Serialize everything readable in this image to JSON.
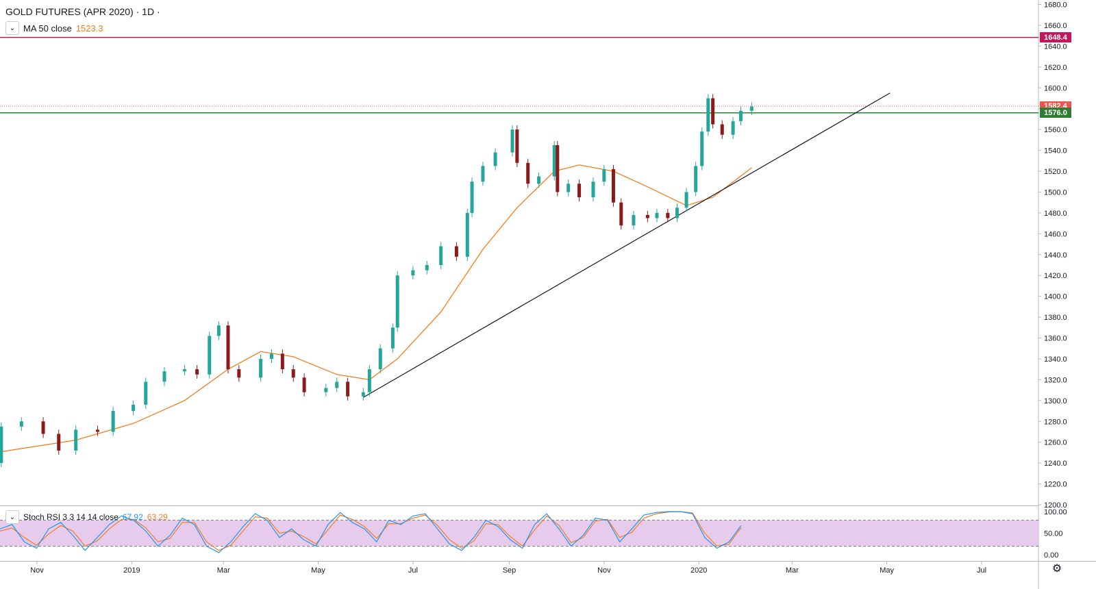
{
  "header": {
    "title": "GOLD FUTURES (APR 2020) · 1D ·",
    "ma_label": "MA 50 close",
    "ma_value": "1523.3"
  },
  "stoch": {
    "label": "Stoch RSI 3 3 14 14 close",
    "k_value": "67.92",
    "d_value": "63.29",
    "ticks": [
      "100.00",
      "50.00",
      "0.00"
    ],
    "band_upper": 80,
    "band_lower": 20
  },
  "lines": {
    "resistance_label": "1648.4",
    "last_price_label": "1582.4",
    "support_label": "1576.0",
    "resistance_color": "#c2185b",
    "last_price_color": "#ef5350",
    "support_color": "#2e7d32"
  },
  "colors": {
    "up": "#26a69a",
    "down": "#8b1a1a",
    "ma": "#f57c1f",
    "stoch_k": "#2196f3",
    "stoch_d": "#f57c1f",
    "band": "#e1bee7",
    "trendline": "#131722"
  },
  "chart_data": {
    "type": "candlestick",
    "title": "GOLD FUTURES (APR 2020) · 1D ·",
    "y_range": [
      1200,
      1680
    ],
    "y_ticks": [
      "1680.0",
      "1660.0",
      "1640.0",
      "1620.0",
      "1600.0",
      "1580.0",
      "1560.0",
      "1540.0",
      "1520.0",
      "1500.0",
      "1480.0",
      "1460.0",
      "1440.0",
      "1420.0",
      "1400.0",
      "1380.0",
      "1360.0",
      "1340.0",
      "1320.0",
      "1300.0",
      "1280.0",
      "1260.0",
      "1240.0",
      "1220.0",
      "1200.0"
    ],
    "x_ticks": [
      {
        "label": "Nov",
        "date": "2018-11-01"
      },
      {
        "label": "2019",
        "date": "2019-01-01"
      },
      {
        "label": "Mar",
        "date": "2019-03-01"
      },
      {
        "label": "May",
        "date": "2019-05-01"
      },
      {
        "label": "Jul",
        "date": "2019-07-01"
      },
      {
        "label": "Sep",
        "date": "2019-09-01"
      },
      {
        "label": "Nov",
        "date": "2019-11-01"
      },
      {
        "label": "2020",
        "date": "2020-01-01"
      },
      {
        "label": "Mar",
        "date": "2020-03-01"
      },
      {
        "label": "May",
        "date": "2020-05-01"
      },
      {
        "label": "Jul",
        "date": "2020-07-01"
      }
    ],
    "close_series": [
      {
        "date": "2018-10-05",
        "close": 1240
      },
      {
        "date": "2018-10-09",
        "close": 1275
      },
      {
        "date": "2018-10-22",
        "close": 1280
      },
      {
        "date": "2018-11-05",
        "close": 1268
      },
      {
        "date": "2018-11-15",
        "close": 1252
      },
      {
        "date": "2018-11-26",
        "close": 1272
      },
      {
        "date": "2018-12-10",
        "close": 1270
      },
      {
        "date": "2018-12-20",
        "close": 1290
      },
      {
        "date": "2019-01-02",
        "close": 1296
      },
      {
        "date": "2019-01-10",
        "close": 1318
      },
      {
        "date": "2019-01-22",
        "close": 1328
      },
      {
        "date": "2019-02-04",
        "close": 1330
      },
      {
        "date": "2019-02-12",
        "close": 1325
      },
      {
        "date": "2019-02-20",
        "close": 1362
      },
      {
        "date": "2019-02-26",
        "close": 1372
      },
      {
        "date": "2019-03-04",
        "close": 1330
      },
      {
        "date": "2019-03-11",
        "close": 1322
      },
      {
        "date": "2019-03-25",
        "close": 1340
      },
      {
        "date": "2019-04-01",
        "close": 1345
      },
      {
        "date": "2019-04-08",
        "close": 1330
      },
      {
        "date": "2019-04-15",
        "close": 1322
      },
      {
        "date": "2019-04-22",
        "close": 1308
      },
      {
        "date": "2019-05-06",
        "close": 1312
      },
      {
        "date": "2019-05-13",
        "close": 1318
      },
      {
        "date": "2019-05-20",
        "close": 1304
      },
      {
        "date": "2019-05-30",
        "close": 1308
      },
      {
        "date": "2019-06-03",
        "close": 1330
      },
      {
        "date": "2019-06-10",
        "close": 1350
      },
      {
        "date": "2019-06-18",
        "close": 1370
      },
      {
        "date": "2019-06-21",
        "close": 1420
      },
      {
        "date": "2019-07-01",
        "close": 1425
      },
      {
        "date": "2019-07-10",
        "close": 1430
      },
      {
        "date": "2019-07-19",
        "close": 1448
      },
      {
        "date": "2019-07-29",
        "close": 1438
      },
      {
        "date": "2019-08-05",
        "close": 1480
      },
      {
        "date": "2019-08-08",
        "close": 1510
      },
      {
        "date": "2019-08-15",
        "close": 1525
      },
      {
        "date": "2019-08-23",
        "close": 1538
      },
      {
        "date": "2019-09-03",
        "close": 1560
      },
      {
        "date": "2019-09-06",
        "close": 1528
      },
      {
        "date": "2019-09-13",
        "close": 1508
      },
      {
        "date": "2019-09-20",
        "close": 1515
      },
      {
        "date": "2019-09-30",
        "close": 1545
      },
      {
        "date": "2019-10-02",
        "close": 1500
      },
      {
        "date": "2019-10-09",
        "close": 1508
      },
      {
        "date": "2019-10-16",
        "close": 1495
      },
      {
        "date": "2019-10-25",
        "close": 1510
      },
      {
        "date": "2019-11-01",
        "close": 1522
      },
      {
        "date": "2019-11-07",
        "close": 1490
      },
      {
        "date": "2019-11-12",
        "close": 1468
      },
      {
        "date": "2019-11-20",
        "close": 1478
      },
      {
        "date": "2019-11-29",
        "close": 1475
      },
      {
        "date": "2019-12-05",
        "close": 1480
      },
      {
        "date": "2019-12-12",
        "close": 1475
      },
      {
        "date": "2019-12-18",
        "close": 1485
      },
      {
        "date": "2019-12-24",
        "close": 1500
      },
      {
        "date": "2019-12-30",
        "close": 1525
      },
      {
        "date": "2020-01-03",
        "close": 1558
      },
      {
        "date": "2020-01-07",
        "close": 1590
      },
      {
        "date": "2020-01-10",
        "close": 1565
      },
      {
        "date": "2020-01-16",
        "close": 1555
      },
      {
        "date": "2020-01-23",
        "close": 1568
      },
      {
        "date": "2020-01-28",
        "close": 1578
      },
      {
        "date": "2020-02-04",
        "close": 1582
      }
    ],
    "ma50_series": [
      {
        "date": "2018-10-05",
        "value": 1250
      },
      {
        "date": "2018-11-26",
        "value": 1262
      },
      {
        "date": "2019-01-02",
        "value": 1278
      },
      {
        "date": "2019-02-04",
        "value": 1300
      },
      {
        "date": "2019-03-04",
        "value": 1330
      },
      {
        "date": "2019-03-25",
        "value": 1347
      },
      {
        "date": "2019-04-15",
        "value": 1342
      },
      {
        "date": "2019-05-13",
        "value": 1325
      },
      {
        "date": "2019-06-03",
        "value": 1320
      },
      {
        "date": "2019-06-21",
        "value": 1340
      },
      {
        "date": "2019-07-19",
        "value": 1385
      },
      {
        "date": "2019-08-15",
        "value": 1445
      },
      {
        "date": "2019-09-06",
        "value": 1485
      },
      {
        "date": "2019-09-30",
        "value": 1520
      },
      {
        "date": "2019-10-16",
        "value": 1526
      },
      {
        "date": "2019-11-07",
        "value": 1520
      },
      {
        "date": "2019-11-29",
        "value": 1505
      },
      {
        "date": "2019-12-24",
        "value": 1487
      },
      {
        "date": "2020-01-10",
        "value": 1495
      },
      {
        "date": "2020-02-04",
        "value": 1523.3
      }
    ],
    "trendline": [
      {
        "date": "2019-05-30",
        "value": 1303
      },
      {
        "date": "2020-05-03",
        "value": 1595
      }
    ],
    "stoch_k": [
      60,
      70,
      30,
      15,
      60,
      75,
      45,
      10,
      40,
      70,
      90,
      80,
      55,
      20,
      45,
      85,
      70,
      20,
      5,
      30,
      65,
      95,
      80,
      40,
      60,
      35,
      20,
      70,
      98,
      75,
      60,
      30,
      80,
      70,
      90,
      95,
      60,
      25,
      10,
      40,
      80,
      65,
      35,
      15,
      70,
      95,
      60,
      20,
      45,
      85,
      80,
      30,
      60,
      92,
      98,
      100,
      100,
      95,
      40,
      15,
      30,
      68
    ],
    "stoch_d": [
      55,
      62,
      40,
      22,
      48,
      68,
      55,
      20,
      32,
      60,
      82,
      82,
      62,
      30,
      38,
      75,
      75,
      30,
      10,
      22,
      55,
      88,
      85,
      50,
      55,
      42,
      25,
      58,
      92,
      82,
      65,
      38,
      72,
      72,
      85,
      92,
      68,
      35,
      15,
      32,
      72,
      70,
      42,
      20,
      58,
      90,
      68,
      28,
      40,
      78,
      82,
      40,
      52,
      85,
      95,
      99,
      100,
      97,
      50,
      20,
      25,
      63.29
    ]
  }
}
